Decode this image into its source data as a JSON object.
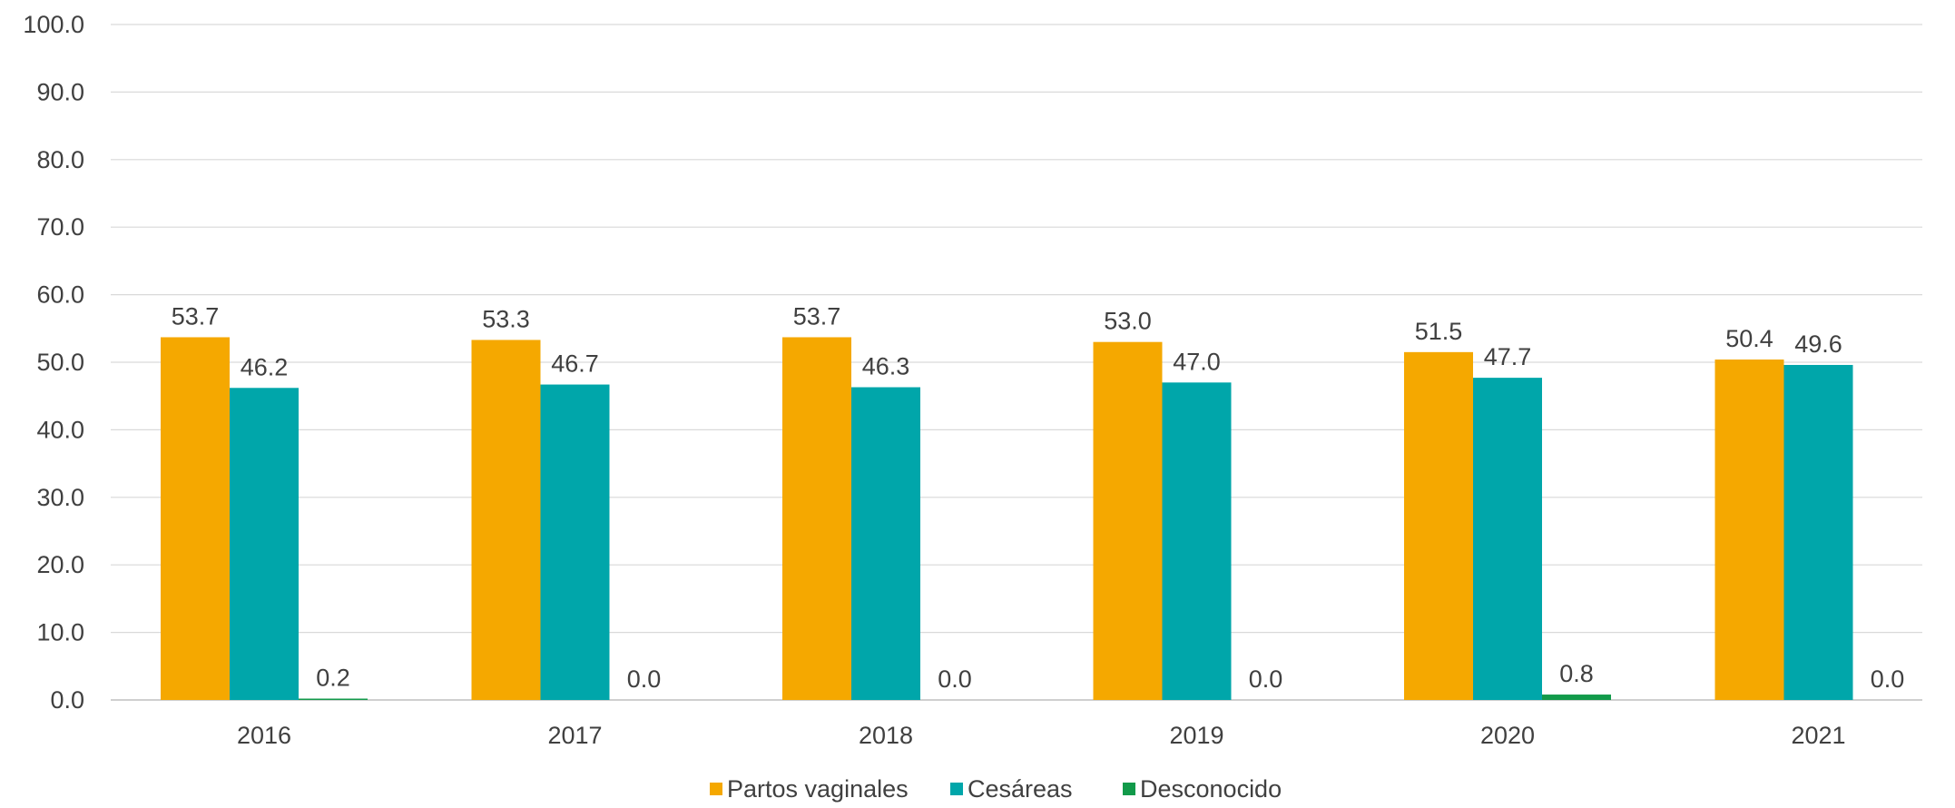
{
  "chart_data": {
    "type": "bar",
    "title": "",
    "xlabel": "",
    "ylabel": "",
    "categories": [
      "2016",
      "2017",
      "2018",
      "2019",
      "2020",
      "2021"
    ],
    "series": [
      {
        "name": "Partos vaginales",
        "color": "#F5A800",
        "values": [
          53.7,
          53.3,
          53.7,
          53.0,
          51.5,
          50.4
        ],
        "labels": [
          "53.7",
          "53.3",
          "53.7",
          "53.0",
          "51.5",
          "50.4"
        ]
      },
      {
        "name": "Cesáreas",
        "color": "#00A6AA",
        "values": [
          46.2,
          46.7,
          46.3,
          47.0,
          47.7,
          49.6
        ],
        "labels": [
          "46.2",
          "46.7",
          "46.3",
          "47.0",
          "47.7",
          "49.6"
        ]
      },
      {
        "name": "Desconocido",
        "color": "#129A4A",
        "values": [
          0.2,
          0.0,
          0.0,
          0.0,
          0.8,
          0.0
        ],
        "labels": [
          "0.2",
          "0.0",
          "0.0",
          "0.0",
          "0.8",
          "0.0"
        ]
      }
    ],
    "ylim": [
      0,
      100
    ],
    "y_ticks": [
      "0.0",
      "10.0",
      "20.0",
      "30.0",
      "40.0",
      "50.0",
      "60.0",
      "70.0",
      "80.0",
      "90.0",
      "100.0"
    ],
    "grid": true,
    "legend_position": "bottom-center"
  }
}
